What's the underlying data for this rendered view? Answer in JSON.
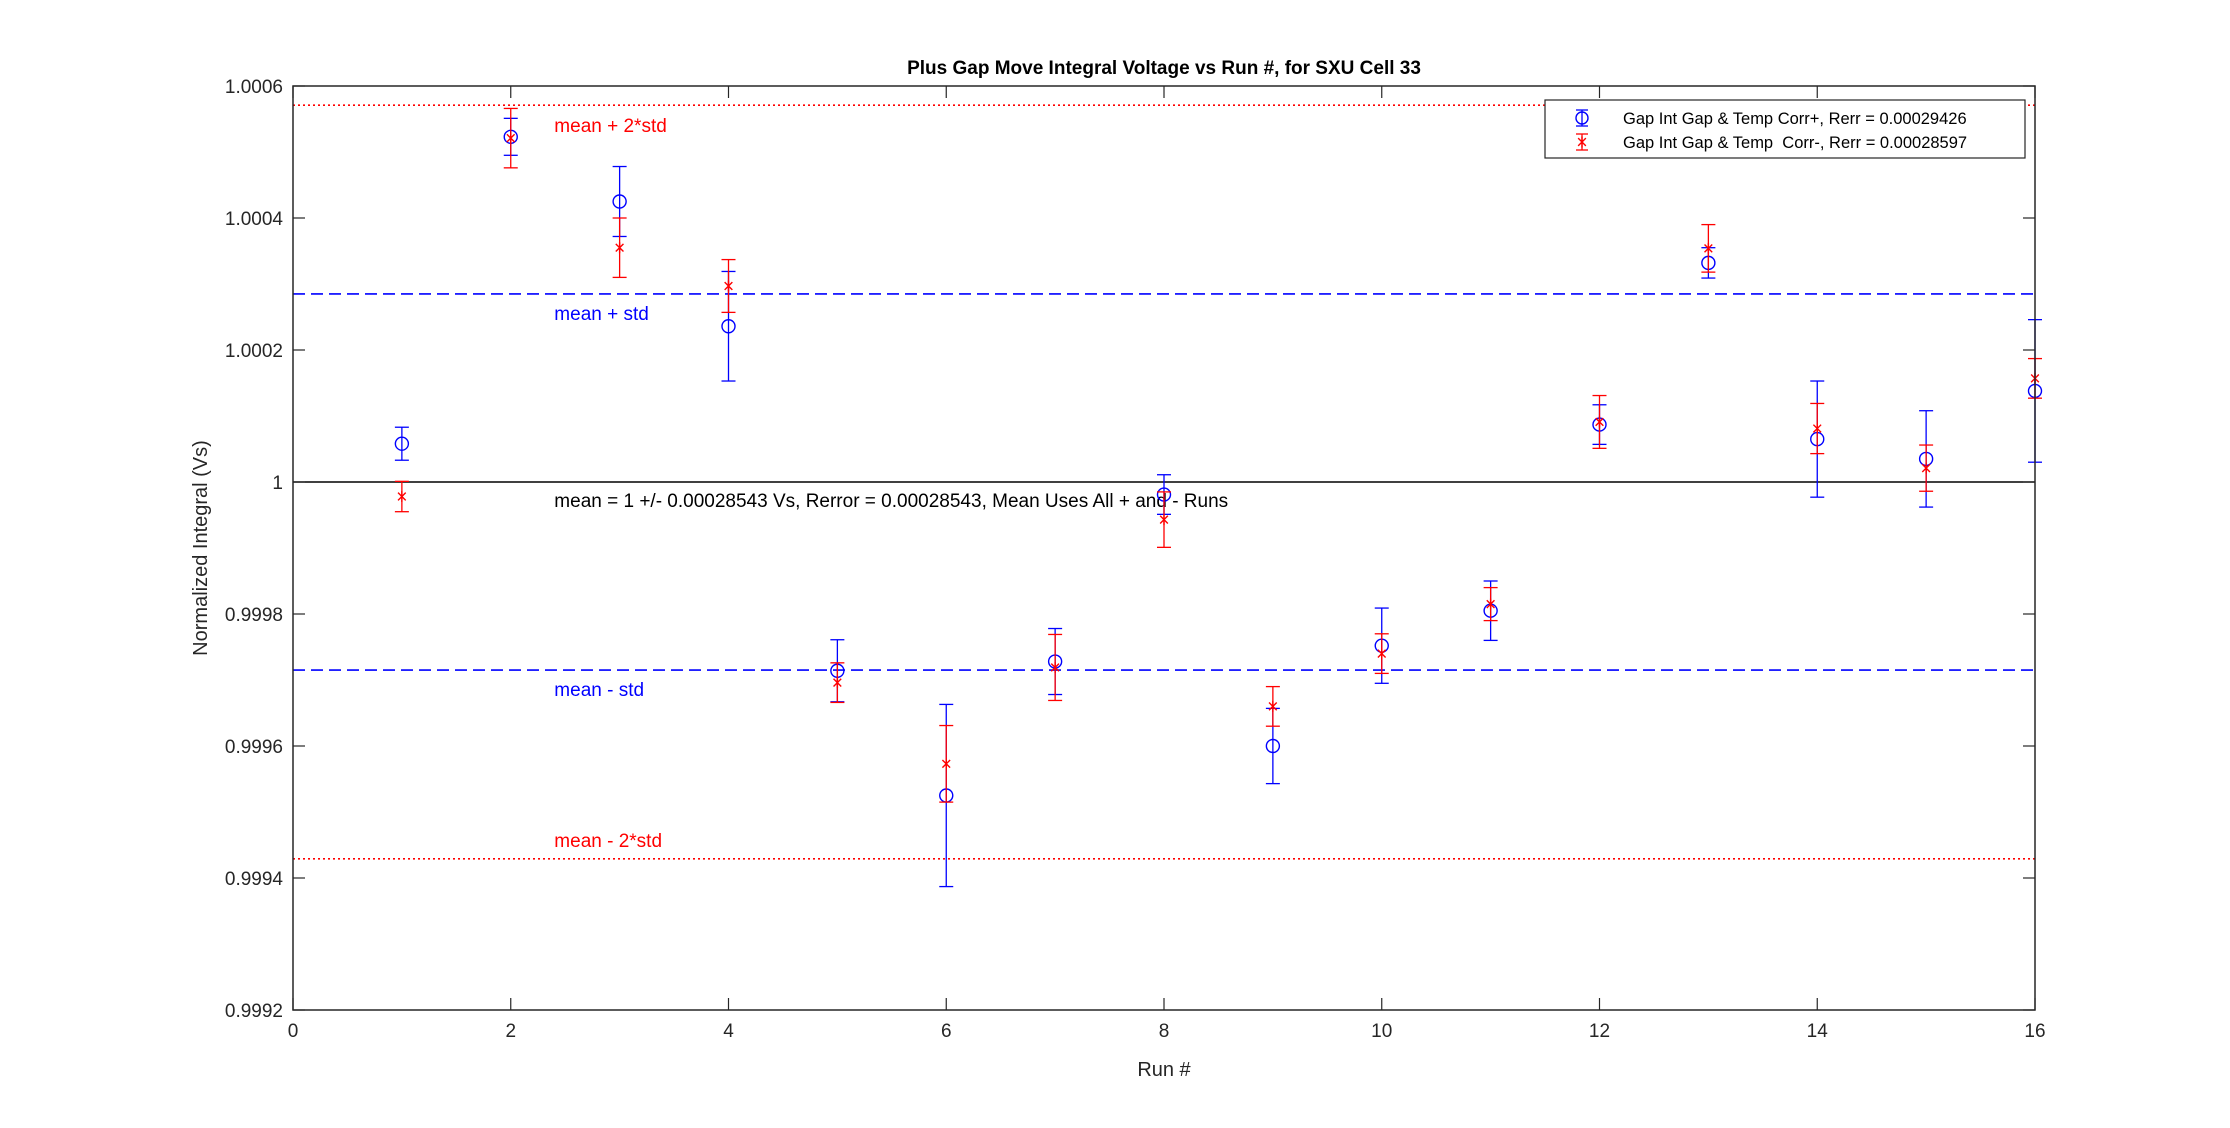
{
  "chart_data": {
    "type": "scatter",
    "title": "Plus Gap Move Integral Voltage vs Run #, for SXU Cell 33",
    "xlabel": "Run #",
    "ylabel": "Normalized Integral (Vs)",
    "xlim": [
      0,
      16
    ],
    "ylim": [
      0.9992,
      1.0006
    ],
    "xticks": [
      0,
      2,
      4,
      6,
      8,
      10,
      12,
      14,
      16
    ],
    "yticks": [
      0.9992,
      0.9994,
      0.9996,
      0.9998,
      1,
      1.0002,
      1.0004,
      1.0006
    ],
    "xtick_labels": [
      "0",
      "2",
      "4",
      "6",
      "8",
      "10",
      "12",
      "14",
      "16"
    ],
    "ytick_labels": [
      "0.9992",
      "0.9994",
      "0.9996",
      "0.9998",
      "1",
      "1.0002",
      "1.0004",
      "1.0006"
    ],
    "grid": false,
    "legend_position": "top-right",
    "series": [
      {
        "name": "Gap Int Gap & Temp Corr+, Rerr = 0.00029426",
        "marker": "circle",
        "color": "#0000ff",
        "x": [
          1,
          2,
          3,
          4,
          5,
          6,
          7,
          8,
          9,
          10,
          11,
          12,
          13,
          14,
          15,
          16
        ],
        "y": [
          1.000058,
          1.000523,
          1.000425,
          1.000236,
          0.999714,
          0.999525,
          0.999728,
          0.999981,
          0.9996,
          0.999752,
          0.999805,
          1.000087,
          1.000332,
          1.000065,
          1.000035,
          1.000138
        ],
        "err": [
          2.5e-05,
          2.8e-05,
          5.3e-05,
          8.3e-05,
          4.7e-05,
          0.000138,
          5e-05,
          3e-05,
          5.7e-05,
          5.7e-05,
          4.5e-05,
          3e-05,
          2.3e-05,
          8.8e-05,
          7.3e-05,
          0.000108
        ]
      },
      {
        "name": "Gap Int Gap & Temp  Corr-, Rerr = 0.00028597",
        "marker": "asterisk",
        "color": "#ff0000",
        "x": [
          1,
          2,
          3,
          4,
          5,
          6,
          7,
          8,
          9,
          10,
          11,
          12,
          13,
          14,
          15,
          16
        ],
        "y": [
          0.999978,
          1.000521,
          1.000355,
          1.000297,
          0.999696,
          0.999573,
          0.999719,
          0.999943,
          0.99966,
          0.99974,
          0.999815,
          1.000091,
          1.000354,
          1.000081,
          1.000021,
          1.000157
        ],
        "err": [
          2.3e-05,
          4.5e-05,
          4.5e-05,
          4e-05,
          3e-05,
          5.8e-05,
          5e-05,
          4.2e-05,
          3e-05,
          3e-05,
          2.5e-05,
          4e-05,
          3.6e-05,
          3.8e-05,
          3.5e-05,
          3e-05
        ]
      }
    ],
    "reference_lines": [
      {
        "y": 1.000571,
        "style": "dotted",
        "color": "#ff0000",
        "label": "mean + 2*std"
      },
      {
        "y": 1.000285,
        "style": "dashed",
        "color": "#0000ff",
        "label": "mean + std"
      },
      {
        "y": 1.0,
        "style": "solid",
        "color": "#000000",
        "label": "mean = 1 +/- 0.00028543 Vs, Rerror = 0.00028543, Mean Uses All + and - Runs"
      },
      {
        "y": 0.999715,
        "style": "dashed",
        "color": "#0000ff",
        "label": "mean - std"
      },
      {
        "y": 0.999429,
        "style": "dotted",
        "color": "#ff0000",
        "label": "mean - 2*std"
      }
    ]
  }
}
